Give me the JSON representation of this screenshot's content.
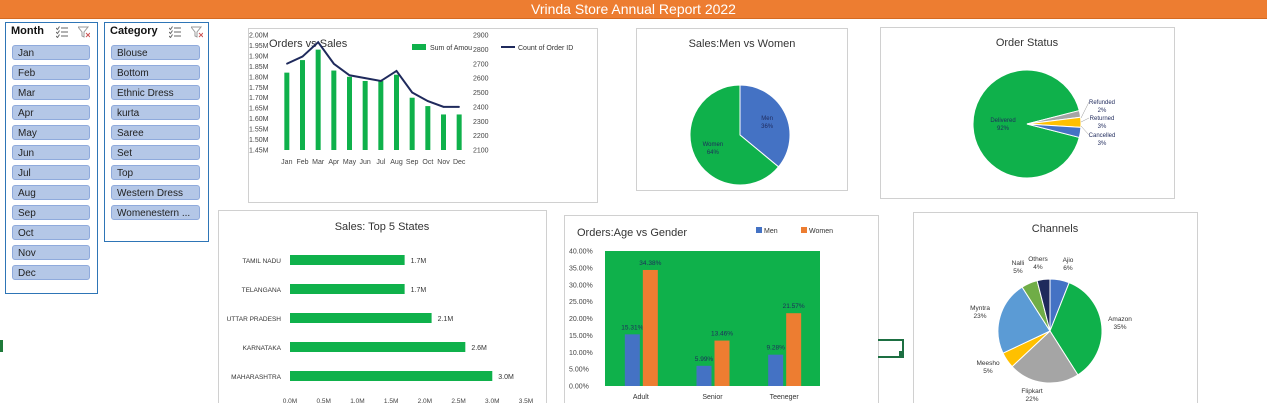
{
  "title": "Vrinda Store Annual Report 2022",
  "colors": {
    "banner": "#ED7D31",
    "green": "#0FB14B",
    "blue": "#4472C4",
    "orange": "#ED7D31",
    "navy": "#1F2A5C",
    "gray": "#A5A5A5",
    "yellow": "#FFC000",
    "lightblue": "#5B9BD5",
    "darkgreen": "#70AD47",
    "slicer": "#B4C7E7"
  },
  "slicers": {
    "month": {
      "title": "Month",
      "items": [
        "Jan",
        "Feb",
        "Mar",
        "Apr",
        "May",
        "Jun",
        "Jul",
        "Aug",
        "Sep",
        "Oct",
        "Nov",
        "Dec"
      ],
      "icons": [
        "multi-select-icon",
        "clear-filter-icon"
      ]
    },
    "category": {
      "title": "Category",
      "items": [
        "Blouse",
        "Bottom",
        "Ethnic Dress",
        "kurta",
        "Saree",
        "Set",
        "Top",
        "Western Dress",
        "Womenestern ..."
      ],
      "icons": [
        "multi-select-icon",
        "clear-filter-icon"
      ]
    }
  },
  "chart_data": [
    {
      "id": "orders-vs-sales",
      "type": "bar",
      "title": "Orders vs Sales",
      "categories": [
        "Jan",
        "Feb",
        "Mar",
        "Apr",
        "May",
        "Jun",
        "Jul",
        "Aug",
        "Sep",
        "Oct",
        "Nov",
        "Dec"
      ],
      "series": [
        {
          "name": "Sum of Amount",
          "type": "bar",
          "axis": "left",
          "values": [
            1.82,
            1.88,
            1.93,
            1.83,
            1.8,
            1.78,
            1.78,
            1.81,
            1.7,
            1.66,
            1.62,
            1.62
          ]
        },
        {
          "name": "Count of Order ID",
          "type": "line",
          "axis": "right",
          "values": [
            2700,
            2750,
            2850,
            2700,
            2620,
            2600,
            2580,
            2650,
            2500,
            2440,
            2400,
            2400
          ]
        }
      ],
      "y_left": {
        "ylim": [
          1.45,
          2.0
        ],
        "ticks": [
          "2.00M",
          "1.95M",
          "1.90M",
          "1.85M",
          "1.80M",
          "1.75M",
          "1.70M",
          "1.65M",
          "1.60M",
          "1.55M",
          "1.50M",
          "1.45M"
        ]
      },
      "y_right": {
        "ylim": [
          2100,
          2900
        ],
        "ticks": [
          "2900",
          "2800",
          "2700",
          "2600",
          "2500",
          "2400",
          "2300",
          "2200",
          "2100"
        ]
      },
      "legend": "top-right",
      "legend_labels": [
        "Sum of Amou",
        "Count of Order ID"
      ]
    },
    {
      "id": "sales-men-women",
      "type": "pie",
      "title": "Sales:Men vs Women",
      "labels": [
        "Men",
        "Women"
      ],
      "values": [
        36,
        64
      ],
      "data_labels": [
        "Men\n36%",
        "Women\n64%"
      ]
    },
    {
      "id": "order-status",
      "type": "pie",
      "title": "Order Status",
      "labels": [
        "Delivered",
        "Refunded",
        "Returned",
        "Cancelled"
      ],
      "values": [
        92,
        2,
        3,
        3
      ],
      "data_labels": [
        "Delivered\n92%",
        "Refunded\n2%",
        "Returned\n3%",
        "Cancelled\n3%"
      ]
    },
    {
      "id": "top5-states",
      "type": "bar",
      "orientation": "horizontal",
      "title": "Sales: Top 5 States",
      "categories": [
        "TAMIL NADU",
        "TELANGANA",
        "UTTAR PRADESH",
        "KARNATAKA",
        "MAHARASHTRA"
      ],
      "values": [
        1.7,
        1.7,
        2.1,
        2.6,
        3.0
      ],
      "data_labels": [
        "1.7M",
        "1.7M",
        "2.1M",
        "2.6M",
        "3.0M"
      ],
      "xlim": [
        0,
        3.5
      ],
      "x_ticks": [
        "0.0M",
        "0.5M",
        "1.0M",
        "1.5M",
        "2.0M",
        "2.5M",
        "3.0M",
        "3.5M"
      ]
    },
    {
      "id": "age-vs-gender",
      "type": "bar",
      "title": "Orders:Age vs Gender",
      "categories": [
        "Adult",
        "Senior",
        "Teeneger"
      ],
      "series": [
        {
          "name": "Men",
          "values": [
            15.31,
            5.99,
            9.28
          ],
          "labels": [
            "15.31%",
            "5.99%",
            "9.28%"
          ]
        },
        {
          "name": "Women",
          "values": [
            34.38,
            13.46,
            21.57
          ],
          "labels": [
            "34.38%",
            "13.46%",
            "21.57%"
          ]
        }
      ],
      "ylim": [
        0,
        40
      ],
      "y_ticks": [
        "40.00%",
        "35.00%",
        "30.00%",
        "25.00%",
        "20.00%",
        "15.00%",
        "10.00%",
        "5.00%",
        "0.00%"
      ],
      "legend": "top-right",
      "plot_background": "#0FB14B"
    },
    {
      "id": "channels",
      "type": "pie",
      "title": "Channels",
      "labels": [
        "Ajio",
        "Amazon",
        "Flipkart",
        "Meesho",
        "Myntra",
        "Nalli",
        "Others"
      ],
      "values": [
        6,
        35,
        22,
        5,
        23,
        5,
        4
      ],
      "data_labels": [
        "Ajio\n6%",
        "Amazon\n35%",
        "Flipkart\n22%",
        "Meesho\n5%",
        "Myntra\n23%",
        "Nalli\n5%",
        "Others\n4%"
      ]
    }
  ]
}
